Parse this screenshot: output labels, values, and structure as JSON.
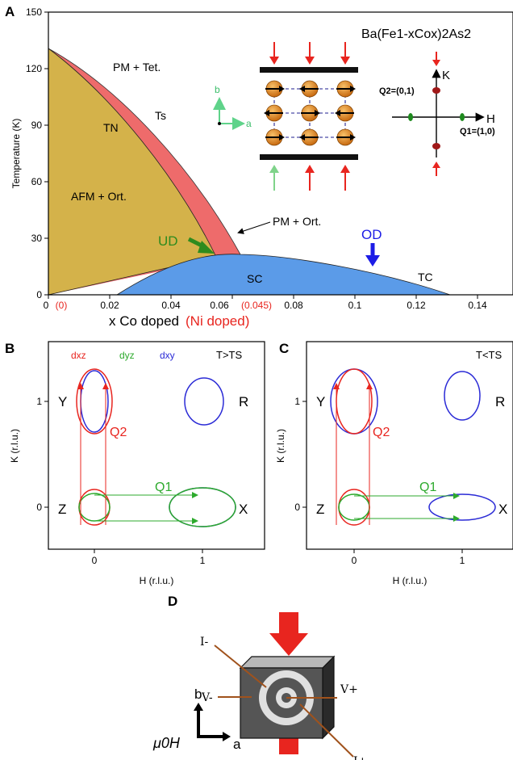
{
  "panelA": {
    "label": "A",
    "formula": "Ba(Fe1-xCox)2As2",
    "y_axis_label": "Temperature (K)",
    "x_axis_label_main": "x Co doped",
    "x_axis_label_alt": "(Ni doped)",
    "y_ticks": [
      "0",
      "30",
      "60",
      "90",
      "120",
      "150"
    ],
    "x_ticks": [
      "0",
      "0.02",
      "0.04",
      "0.06",
      "0.08",
      "0.1",
      "0.12",
      "0.14"
    ],
    "x_ticks_alt": [
      "(0)",
      "(0.045)"
    ],
    "regions": {
      "pm_tet": "PM + Tet.",
      "tn": "TN",
      "ts": "Ts",
      "afm_ort": "AFM + Ort.",
      "pm_ort": "PM + Ort.",
      "sc": "SC",
      "tc": "TC",
      "ud": "UD",
      "od": "OD"
    },
    "lattice_axes": {
      "b": "b",
      "a": "a"
    },
    "reciprocal": {
      "k": "K",
      "h": "H",
      "q2": "Q2=(0,1)",
      "q1": "Q1=(1,0)"
    }
  },
  "panelB": {
    "label": "B",
    "condition": "T>TS",
    "legend": [
      "dxz",
      "dyz",
      "dxy"
    ],
    "y_axis_label": "K (r.l.u.)",
    "x_axis_label": "H (r.l.u.)",
    "x_ticks": [
      "0",
      "1"
    ],
    "y_ticks": [
      "0",
      "1"
    ],
    "points": {
      "Y": "Y",
      "R": "R",
      "Z": "Z",
      "X": "X"
    },
    "q1": "Q1",
    "q2": "Q2"
  },
  "panelC": {
    "label": "C",
    "condition": "T<TS",
    "y_axis_label": "K (r.l.u.)",
    "x_axis_label": "H (r.l.u.)",
    "x_ticks": [
      "0",
      "1"
    ],
    "y_ticks": [
      "0",
      "1"
    ],
    "points": {
      "Y": "Y",
      "R": "R",
      "Z": "Z",
      "X": "X"
    },
    "q1": "Q1",
    "q2": "Q2"
  },
  "panelD": {
    "label": "D",
    "i_minus": "I-",
    "i_plus": "I+",
    "v_minus": "V-",
    "v_plus": "V+",
    "field": "μ0H",
    "b": "b",
    "a": "a"
  },
  "colors": {
    "afm": "#D4B24A",
    "ortho": "#EE6B6B",
    "sc": "#5B9BE8",
    "dxz": "#E8251F",
    "dyz": "#2DAA2D",
    "dxy": "#2B2BD6",
    "ud": "#2E8B1E",
    "od": "#1C1CE6"
  }
}
